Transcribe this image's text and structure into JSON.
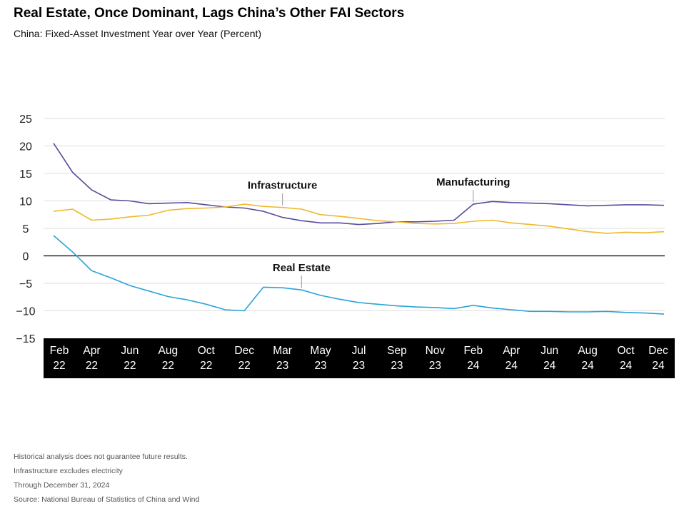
{
  "title": "Real Estate, Once Dominant, Lags China’s Other FAI Sectors",
  "subtitle": "China: Fixed-Asset Investment Year over Year (Percent)",
  "footnotes": [
    "Historical analysis does not guarantee future results.",
    "Infrastructure excludes electricity",
    "Through December 31, 2024",
    "Source: National Bureau of Statistics of China and Wind"
  ],
  "chart_data": {
    "type": "line",
    "ylim": [
      -15,
      25
    ],
    "yticks": [
      "25",
      "20",
      "15",
      "10",
      "5",
      "0",
      "−5",
      "−10",
      "−15"
    ],
    "ytick_values": [
      25,
      20,
      15,
      10,
      5,
      0,
      -5,
      -10,
      -15
    ],
    "x": [
      "2022-02",
      "2022-03",
      "2022-04",
      "2022-05",
      "2022-06",
      "2022-07",
      "2022-08",
      "2022-09",
      "2022-10",
      "2022-11",
      "2022-12",
      "2023-02",
      "2023-03",
      "2023-04",
      "2023-05",
      "2023-06",
      "2023-07",
      "2023-08",
      "2023-09",
      "2023-10",
      "2023-11",
      "2023-12",
      "2024-02",
      "2024-03",
      "2024-04",
      "2024-05",
      "2024-06",
      "2024-07",
      "2024-08",
      "2024-09",
      "2024-10",
      "2024-11",
      "2024-12"
    ],
    "xticks": [
      {
        "x": "2022-02",
        "label": [
          "Feb",
          "22"
        ]
      },
      {
        "x": "2022-04",
        "label": [
          "Apr",
          "22"
        ]
      },
      {
        "x": "2022-06",
        "label": [
          "Jun",
          "22"
        ]
      },
      {
        "x": "2022-08",
        "label": [
          "Aug",
          "22"
        ]
      },
      {
        "x": "2022-10",
        "label": [
          "Oct",
          "22"
        ]
      },
      {
        "x": "2022-12",
        "label": [
          "Dec",
          "22"
        ]
      },
      {
        "x": "2023-03",
        "label": [
          "Mar",
          "23"
        ]
      },
      {
        "x": "2023-05",
        "label": [
          "May",
          "23"
        ]
      },
      {
        "x": "2023-07",
        "label": [
          "Jul",
          "23"
        ]
      },
      {
        "x": "2023-09",
        "label": [
          "Sep",
          "23"
        ]
      },
      {
        "x": "2023-11",
        "label": [
          "Nov",
          "23"
        ]
      },
      {
        "x": "2024-02",
        "label": [
          "Feb",
          "24"
        ]
      },
      {
        "x": "2024-04",
        "label": [
          "Apr",
          "24"
        ]
      },
      {
        "x": "2024-06",
        "label": [
          "Jun",
          "24"
        ]
      },
      {
        "x": "2024-08",
        "label": [
          "Aug",
          "24"
        ]
      },
      {
        "x": "2024-10",
        "label": [
          "Oct",
          "24"
        ]
      },
      {
        "x": "2024-12",
        "label": [
          "Dec",
          "24"
        ]
      }
    ],
    "grid": true,
    "series": [
      {
        "name": "Manufacturing",
        "color": "#5b4a9b",
        "values": [
          20.5,
          15.2,
          12.0,
          10.2,
          10.0,
          9.5,
          9.6,
          9.7,
          9.3,
          8.9,
          8.7,
          8.1,
          7.0,
          6.4,
          6.0,
          6.0,
          5.7,
          5.9,
          6.2,
          6.2,
          6.3,
          6.5,
          9.4,
          9.9,
          9.7,
          9.6,
          9.5,
          9.3,
          9.1,
          9.2,
          9.3,
          9.3,
          9.2
        ]
      },
      {
        "name": "Infrastructure",
        "color": "#f2b72c",
        "values": [
          8.1,
          8.5,
          6.5,
          6.7,
          7.1,
          7.4,
          8.3,
          8.6,
          8.7,
          8.9,
          9.4,
          9.0,
          8.8,
          8.5,
          7.5,
          7.2,
          6.8,
          6.4,
          6.2,
          5.9,
          5.8,
          5.9,
          6.3,
          6.5,
          6.0,
          5.7,
          5.4,
          4.9,
          4.4,
          4.1,
          4.3,
          4.2,
          4.4
        ]
      },
      {
        "name": "Real Estate",
        "color": "#2aa3d8",
        "values": [
          3.7,
          0.7,
          -2.7,
          -4.0,
          -5.4,
          -6.4,
          -7.4,
          -8.0,
          -8.8,
          -9.8,
          -10.0,
          -5.7,
          -5.8,
          -6.2,
          -7.2,
          -7.9,
          -8.5,
          -8.8,
          -9.1,
          -9.3,
          -9.4,
          -9.6,
          -9.0,
          -9.5,
          -9.8,
          -10.1,
          -10.1,
          -10.2,
          -10.2,
          -10.1,
          -10.3,
          -10.4,
          -10.6
        ]
      }
    ],
    "annotations": [
      {
        "text": "Infrastructure",
        "series": "Infrastructure",
        "at": "2023-03",
        "placement": "above"
      },
      {
        "text": "Manufacturing",
        "series": "Manufacturing",
        "at": "2024-02",
        "placement": "above"
      },
      {
        "text": "Real Estate",
        "series": "Real Estate",
        "at": "2023-04",
        "placement": "above"
      }
    ]
  }
}
